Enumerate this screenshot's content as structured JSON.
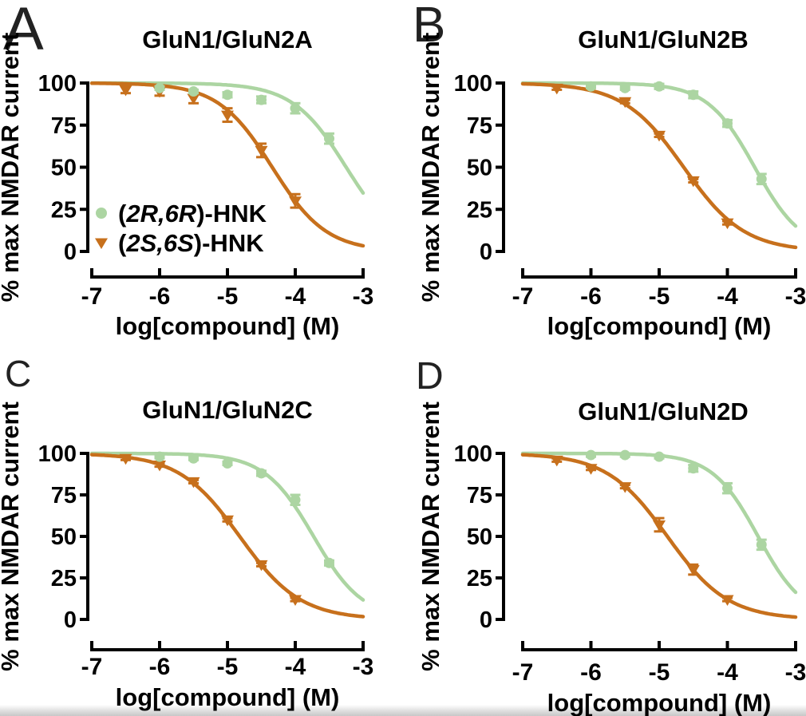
{
  "figure": {
    "background": "#ffffff",
    "colors": {
      "series_green": "#acd5a2",
      "series_orange": "#c7701c",
      "axis": "#000000",
      "panel_letter": "#222222"
    }
  },
  "chart_data": [
    {
      "panel_letter": "A",
      "type": "line",
      "title": "GluN1/GluN2A",
      "xlabel": "log[compound] (M)",
      "ylabel": "% max NMDAR current",
      "xlim": [
        -7,
        -3
      ],
      "ylim": [
        0,
        100
      ],
      "xticks": [
        -7,
        -6,
        -5,
        -4,
        -3
      ],
      "yticks": [
        100,
        75,
        50,
        25,
        0
      ],
      "grid": false,
      "legend_visible": true,
      "legend_position": "lower-left",
      "series": [
        {
          "name": "(2R,6R)-HNK",
          "marker": "circle",
          "color": "#acd5a2",
          "x": [
            -6,
            -5.5,
            -5,
            -4.5,
            -4,
            -3.5
          ],
          "y": [
            97,
            95,
            93,
            90,
            85,
            67
          ],
          "yerr": [
            1,
            1,
            1.5,
            2,
            3,
            3
          ],
          "fit": {
            "model": "4PL",
            "top": 100,
            "bottom": 0,
            "logIC50": -3.25,
            "hill": 1.1
          }
        },
        {
          "name": "(2S,6S)-HNK",
          "marker": "triangle-down",
          "color": "#c7701c",
          "x": [
            -6.5,
            -6,
            -5.5,
            -5,
            -4.5,
            -4
          ],
          "y": [
            96,
            95,
            91,
            81,
            60,
            30
          ],
          "yerr": [
            2,
            2.5,
            3,
            4,
            4,
            4
          ],
          "fit": {
            "model": "4PL",
            "top": 100,
            "bottom": 0,
            "logIC50": -4.34,
            "hill": 1.09
          }
        }
      ]
    },
    {
      "panel_letter": "B",
      "type": "line",
      "title": "GluN1/GluN2B",
      "xlabel": "log[compound] (M)",
      "ylabel": "% max NMDAR current",
      "xlim": [
        -7,
        -3
      ],
      "ylim": [
        0,
        100
      ],
      "xticks": [
        -7,
        -6,
        -5,
        -4,
        -3
      ],
      "yticks": [
        100,
        75,
        50,
        25,
        0
      ],
      "grid": false,
      "legend_visible": false,
      "series": [
        {
          "name": "(2R,6R)-HNK",
          "marker": "circle",
          "color": "#acd5a2",
          "x": [
            -6,
            -5.5,
            -5,
            -4.5,
            -4,
            -3.5
          ],
          "y": [
            98,
            97,
            98,
            93,
            76,
            43
          ],
          "yerr": [
            1,
            1,
            1.5,
            2,
            2,
            3
          ],
          "fit": {
            "model": "4PL",
            "top": 100,
            "bottom": 0,
            "logIC50": -3.6,
            "hill": 1.25
          }
        },
        {
          "name": "(2S,6S)-HNK",
          "marker": "triangle-down",
          "color": "#c7701c",
          "x": [
            -6.5,
            -5.5,
            -5,
            -4.5,
            -4
          ],
          "y": [
            97,
            89,
            69,
            42,
            17
          ],
          "yerr": [
            1,
            1,
            1,
            1,
            1
          ],
          "fit": {
            "model": "4PL",
            "top": 100,
            "bottom": 0,
            "logIC50": -4.64,
            "hill": 0.98
          }
        }
      ]
    },
    {
      "panel_letter": "C",
      "type": "line",
      "title": "GluN1/GluN2C",
      "xlabel": "log[compound] (M)",
      "ylabel": "% max NMDAR current",
      "xlim": [
        -7,
        -3
      ],
      "ylim": [
        0,
        100
      ],
      "xticks": [
        -7,
        -6,
        -5,
        -4,
        -3
      ],
      "yticks": [
        100,
        75,
        50,
        25,
        0
      ],
      "grid": false,
      "legend_visible": false,
      "series": [
        {
          "name": "(2R,6R)-HNK",
          "marker": "circle",
          "color": "#acd5a2",
          "x": [
            -6,
            -5.5,
            -5,
            -4.5,
            -4,
            -3.5
          ],
          "y": [
            98,
            97,
            94,
            88,
            72,
            34
          ],
          "yerr": [
            1,
            1,
            1,
            1.5,
            3,
            1.5
          ],
          "fit": {
            "model": "4PL",
            "top": 100,
            "bottom": 0,
            "logIC50": -3.73,
            "hill": 1.2
          }
        },
        {
          "name": "(2S,6S)-HNK",
          "marker": "triangle-down",
          "color": "#c7701c",
          "x": [
            -6.5,
            -6,
            -5.5,
            -5,
            -4.5,
            -4
          ],
          "y": [
            97,
            93,
            83,
            60,
            33,
            12
          ],
          "yerr": [
            1,
            1,
            1,
            1,
            1,
            1
          ],
          "fit": {
            "model": "4PL",
            "top": 100,
            "bottom": 0,
            "logIC50": -4.82,
            "hill": 0.97
          }
        }
      ]
    },
    {
      "panel_letter": "D",
      "type": "line",
      "title": "GluN1/GluN2D",
      "xlabel": "log[compound] (M)",
      "ylabel": "% max NMDAR current",
      "xlim": [
        -7,
        -3
      ],
      "ylim": [
        0,
        100
      ],
      "xticks": [
        -7,
        -6,
        -5,
        -4,
        -3
      ],
      "yticks": [
        100,
        75,
        50,
        25,
        0
      ],
      "grid": false,
      "legend_visible": false,
      "series": [
        {
          "name": "(2R,6R)-HNK",
          "marker": "circle",
          "color": "#acd5a2",
          "x": [
            -6,
            -5.5,
            -5,
            -4.5,
            -4,
            -3.5
          ],
          "y": [
            99,
            99,
            98,
            91,
            79,
            45
          ],
          "yerr": [
            1,
            1,
            1,
            2,
            3,
            3
          ],
          "fit": {
            "model": "4PL",
            "top": 100,
            "bottom": 0,
            "logIC50": -3.55,
            "hill": 1.29
          }
        },
        {
          "name": "(2S,6S)-HNK",
          "marker": "triangle-down",
          "color": "#c7701c",
          "x": [
            -6.5,
            -6,
            -5.5,
            -5,
            -4.5,
            -4
          ],
          "y": [
            96,
            91,
            80,
            57,
            30,
            12
          ],
          "yerr": [
            1,
            1,
            1,
            4,
            3,
            1
          ],
          "fit": {
            "model": "4PL",
            "top": 100,
            "bottom": 0,
            "logIC50": -4.88,
            "hill": 0.98
          }
        }
      ]
    }
  ]
}
